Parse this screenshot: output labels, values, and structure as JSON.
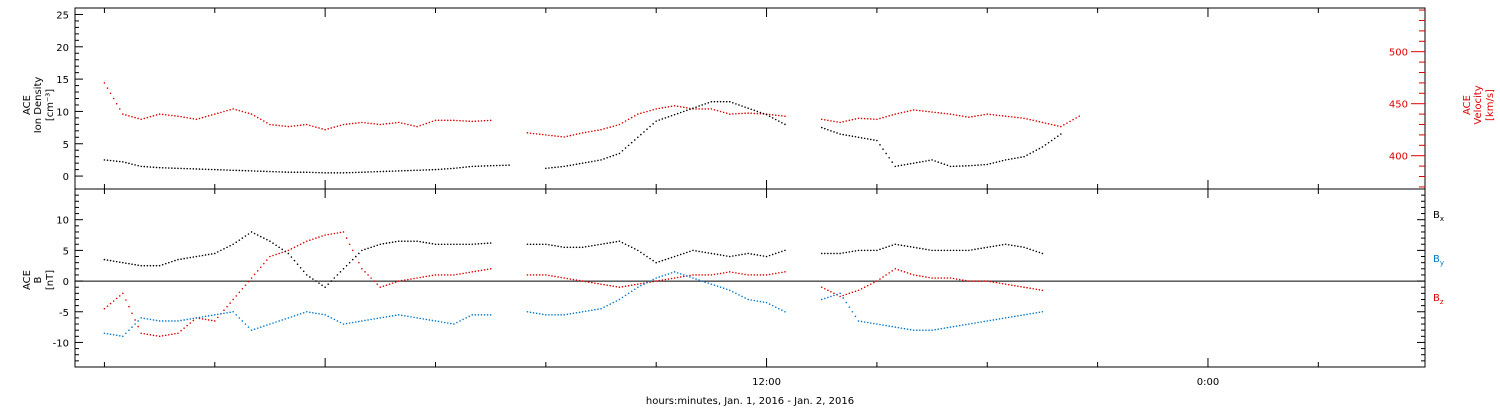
{
  "chart_data": [
    {
      "type": "scatter",
      "title": "",
      "xlabel": "hours:minutes, Jan.  1, 2016 - Jan.  2, 2016",
      "xticks": [
        {
          "label": "",
          "x": 0
        },
        {
          "label": "12:00",
          "x": 12
        },
        {
          "label": "0:00",
          "x": 24
        }
      ],
      "xlim": [
        -6.8,
        29.9
      ],
      "ylim_left": [
        -2,
        26
      ],
      "ylim_right": [
        368,
        542
      ],
      "ylabel_left": [
        "ACE",
        "Ion Density",
        "[cm⁻³]"
      ],
      "ylabel_right": [
        "ACE",
        "Velocity",
        "[km/s]"
      ],
      "yticks_left": [
        {
          "label": "0",
          "y": 0
        },
        {
          "label": "5",
          "y": 5
        },
        {
          "label": "10",
          "y": 10
        },
        {
          "label": "15",
          "y": 15
        },
        {
          "label": "20",
          "y": 20
        },
        {
          "label": "25",
          "y": 25
        }
      ],
      "yticks_right": [
        {
          "label": "400",
          "y": 400
        },
        {
          "label": "450",
          "y": 450
        },
        {
          "label": "500",
          "y": 500
        }
      ],
      "series": [
        {
          "key": "density",
          "axis": "left",
          "color": "#000000",
          "x": [
            -6.0,
            -5.5,
            -5.0,
            -4.5,
            -4.0,
            -3.5,
            -3.0,
            -2.5,
            -2.0,
            -1.5,
            -1.0,
            -0.5,
            0.0,
            0.5,
            1.0,
            1.5,
            2.0,
            2.5,
            3.0,
            3.5,
            4.0,
            4.5,
            5.0,
            5.5,
            6.0,
            6.5,
            7.0,
            7.5,
            8.0,
            8.5,
            9.0,
            9.5,
            10.0,
            10.5,
            11.0,
            11.5,
            12.0,
            12.5,
            13.0,
            13.5,
            14.0,
            14.5,
            15.0,
            15.5,
            16.0,
            16.5,
            17.0,
            17.5,
            18.0,
            18.5,
            19.0,
            19.5,
            20.0,
            20.5,
            21.0,
            21.5,
            22.0,
            22.5,
            23.0,
            23.5,
            24.0,
            24.5,
            25.0,
            25.5,
            26.0,
            26.5,
            27.0,
            27.5,
            28.0,
            28.5,
            29.0,
            29.5
          ],
          "y": [
            2.5,
            2.2,
            1.5,
            1.3,
            1.2,
            1.1,
            1.0,
            0.9,
            0.8,
            0.7,
            0.6,
            0.6,
            0.5,
            0.5,
            0.6,
            0.7,
            0.8,
            0.9,
            1.0,
            1.2,
            1.5,
            1.6,
            1.7,
            null,
            1.2,
            1.5,
            2.0,
            2.5,
            3.5,
            6.0,
            8.5,
            9.5,
            10.5,
            11.5,
            11.5,
            10.5,
            9.5,
            8.0,
            null,
            7.5,
            6.5,
            6.0,
            5.5,
            1.5,
            2.0,
            2.5,
            1.5,
            1.6,
            1.8,
            2.5,
            3.0,
            4.5,
            6.5,
            null,
            null,
            null,
            null,
            null,
            null,
            null,
            null,
            null,
            null,
            null,
            null,
            null,
            null,
            null,
            null,
            null,
            null,
            null
          ]
        },
        {
          "key": "velocity",
          "axis": "right",
          "color": "#dd0000",
          "x": [
            -6.0,
            -5.5,
            -5.0,
            -4.5,
            -4.0,
            -3.5,
            -3.0,
            -2.5,
            -2.0,
            -1.5,
            -1.0,
            -0.5,
            0.0,
            0.5,
            1.0,
            1.5,
            2.0,
            2.5,
            3.0,
            3.5,
            4.0,
            4.5,
            5.0,
            5.5,
            6.0,
            6.5,
            7.0,
            7.5,
            8.0,
            8.5,
            9.0,
            9.5,
            10.0,
            10.5,
            11.0,
            11.5,
            12.0,
            12.5,
            13.0,
            13.5,
            14.0,
            14.5,
            15.0,
            15.5,
            16.0,
            16.5,
            17.0,
            17.5,
            18.0,
            18.5,
            19.0,
            19.5,
            20.0,
            20.5,
            21.0,
            21.5,
            22.0,
            22.5,
            23.0,
            23.5,
            24.0,
            24.5,
            25.0,
            25.5,
            26.0,
            26.5,
            27.0,
            27.5,
            28.0,
            28.5,
            29.0,
            29.5
          ],
          "y": [
            470,
            440,
            435,
            440,
            438,
            435,
            440,
            445,
            440,
            430,
            428,
            430,
            425,
            430,
            432,
            430,
            432,
            428,
            434,
            434,
            433,
            434,
            null,
            422,
            420,
            418,
            422,
            425,
            430,
            440,
            445,
            448,
            445,
            445,
            440,
            441,
            440,
            438,
            null,
            435,
            432,
            436,
            435,
            440,
            444,
            442,
            440,
            437,
            440,
            438,
            436,
            432,
            428,
            438,
            null,
            null,
            null,
            null,
            null,
            null,
            null,
            null,
            null,
            null,
            null,
            null,
            null,
            null,
            null,
            null,
            null,
            null
          ]
        }
      ]
    },
    {
      "type": "scatter",
      "title": "",
      "xlim": [
        -6.8,
        29.9
      ],
      "ylim": [
        -14,
        15
      ],
      "ylabel": [
        "ACE",
        "B",
        "[nT]"
      ],
      "yticks": [
        {
          "label": "-10",
          "y": -10
        },
        {
          "label": "-5",
          "y": -5
        },
        {
          "label": "0",
          "y": 0
        },
        {
          "label": "5",
          "y": 5
        },
        {
          "label": "10",
          "y": 10
        }
      ],
      "zero_line": true,
      "legend": [
        {
          "label": "B",
          "sub": "x",
          "color": "#000000"
        },
        {
          "label": "B",
          "sub": "y",
          "color": "#0077cc"
        },
        {
          "label": "B",
          "sub": "z",
          "color": "#dd0000"
        }
      ],
      "series": [
        {
          "key": "bx",
          "color": "#000000",
          "x": [
            -6.0,
            -5.5,
            -5.0,
            -4.5,
            -4.0,
            -3.5,
            -3.0,
            -2.5,
            -2.0,
            -1.5,
            -1.0,
            -0.5,
            0.0,
            0.5,
            1.0,
            1.5,
            2.0,
            2.5,
            3.0,
            3.5,
            4.0,
            4.5,
            5.0,
            5.5,
            6.0,
            6.5,
            7.0,
            7.5,
            8.0,
            8.5,
            9.0,
            9.5,
            10.0,
            10.5,
            11.0,
            11.5,
            12.0,
            12.5,
            13.0,
            13.5,
            14.0,
            14.5,
            15.0,
            15.5,
            16.0,
            16.5,
            17.0,
            17.5,
            18.0,
            18.5,
            19.0,
            19.5,
            20.0,
            20.5,
            21.0,
            21.5,
            22.0,
            22.5,
            23.0,
            23.5,
            24.0,
            24.5,
            25.0,
            25.5,
            26.0,
            26.5,
            27.0,
            27.5,
            28.0,
            28.5,
            29.0,
            29.5
          ],
          "y": [
            3.5,
            3.0,
            2.5,
            2.5,
            3.5,
            4.0,
            4.5,
            6.0,
            8.0,
            6.5,
            4.5,
            1.0,
            -1.0,
            2.0,
            5.0,
            6.0,
            6.5,
            6.5,
            6.0,
            6.0,
            6.0,
            6.2,
            null,
            6.0,
            6.0,
            5.5,
            5.5,
            6.0,
            6.5,
            5.0,
            3.0,
            4.0,
            5.0,
            4.5,
            4.0,
            4.5,
            4.0,
            5.0,
            null,
            4.5,
            4.5,
            5.0,
            5.0,
            6.0,
            5.5,
            5.0,
            5.0,
            5.0,
            5.5,
            6.0,
            5.5,
            4.5,
            null,
            null,
            null,
            null,
            null,
            null,
            null,
            null,
            null,
            null,
            null,
            null,
            null,
            null,
            null,
            null,
            null,
            null,
            null,
            null
          ]
        },
        {
          "key": "by",
          "color": "#0077cc",
          "x": [
            -6.0,
            -5.5,
            -5.0,
            -4.5,
            -4.0,
            -3.5,
            -3.0,
            -2.5,
            -2.0,
            -1.5,
            -1.0,
            -0.5,
            0.0,
            0.5,
            1.0,
            1.5,
            2.0,
            2.5,
            3.0,
            3.5,
            4.0,
            4.5,
            5.0,
            5.5,
            6.0,
            6.5,
            7.0,
            7.5,
            8.0,
            8.5,
            9.0,
            9.5,
            10.0,
            10.5,
            11.0,
            11.5,
            12.0,
            12.5,
            13.0,
            13.5,
            14.0,
            14.5,
            15.0,
            15.5,
            16.0,
            16.5,
            17.0,
            17.5,
            18.0,
            18.5,
            19.0,
            19.5,
            20.0,
            20.5,
            21.0,
            21.5,
            22.0,
            22.5,
            23.0,
            23.5,
            24.0,
            24.5,
            25.0,
            25.5,
            26.0,
            26.5,
            27.0,
            27.5,
            28.0,
            28.5,
            29.0,
            29.5
          ],
          "y": [
            -8.5,
            -9.0,
            -6.0,
            -6.5,
            -6.5,
            -6.0,
            -5.5,
            -5.0,
            -8.0,
            -7.0,
            -6.0,
            -5.0,
            -5.5,
            -7.0,
            -6.5,
            -6.0,
            -5.5,
            -6.0,
            -6.5,
            -7.0,
            -5.5,
            -5.5,
            null,
            -5.0,
            -5.5,
            -5.5,
            -5.0,
            -4.5,
            -3.0,
            -1.0,
            0.5,
            1.5,
            0.5,
            -0.5,
            -1.5,
            -3.0,
            -3.5,
            -5.0,
            null,
            -3.0,
            -2.0,
            -6.5,
            -7.0,
            -7.5,
            -8.0,
            -8.0,
            -7.5,
            -7.0,
            -6.5,
            -6.0,
            -5.5,
            -5.0,
            null,
            null,
            null,
            null,
            null,
            null,
            null,
            null,
            null,
            null,
            null,
            null,
            null,
            null,
            null,
            null,
            null,
            null,
            null,
            null
          ]
        },
        {
          "key": "bz",
          "color": "#dd0000",
          "x": [
            -6.0,
            -5.5,
            -5.0,
            -4.5,
            -4.0,
            -3.5,
            -3.0,
            -2.5,
            -2.0,
            -1.5,
            -1.0,
            -0.5,
            0.0,
            0.5,
            1.0,
            1.5,
            2.0,
            2.5,
            3.0,
            3.5,
            4.0,
            4.5,
            5.0,
            5.5,
            6.0,
            6.5,
            7.0,
            7.5,
            8.0,
            8.5,
            9.0,
            9.5,
            10.0,
            10.5,
            11.0,
            11.5,
            12.0,
            12.5,
            13.0,
            13.5,
            14.0,
            14.5,
            15.0,
            15.5,
            16.0,
            16.5,
            17.0,
            17.5,
            18.0,
            18.5,
            19.0,
            19.5,
            20.0,
            20.5,
            21.0,
            21.5,
            22.0,
            22.5,
            23.0,
            23.5,
            24.0,
            24.5,
            25.0,
            25.5,
            26.0,
            26.5,
            27.0,
            27.5,
            28.0,
            28.5,
            29.0,
            29.5
          ],
          "y": [
            -4.5,
            -2.0,
            -8.5,
            -9.0,
            -8.5,
            -6.0,
            -6.5,
            -3.0,
            0.5,
            4.0,
            5.0,
            6.5,
            7.5,
            8.0,
            2.0,
            -1.0,
            0.0,
            0.5,
            1.0,
            1.0,
            1.5,
            2.0,
            null,
            1.0,
            1.0,
            0.5,
            0.0,
            -0.5,
            -1.0,
            -0.5,
            0.0,
            0.5,
            1.0,
            1.0,
            1.5,
            1.0,
            1.0,
            1.5,
            null,
            -1.0,
            -2.5,
            -1.5,
            0.0,
            2.0,
            1.0,
            0.5,
            0.5,
            0.0,
            0.0,
            -0.5,
            -1.0,
            -1.5,
            null,
            null,
            null,
            null,
            null,
            null,
            null,
            null,
            null,
            null,
            null,
            null,
            null,
            null,
            null,
            null,
            null,
            null,
            null,
            null
          ]
        }
      ]
    }
  ]
}
